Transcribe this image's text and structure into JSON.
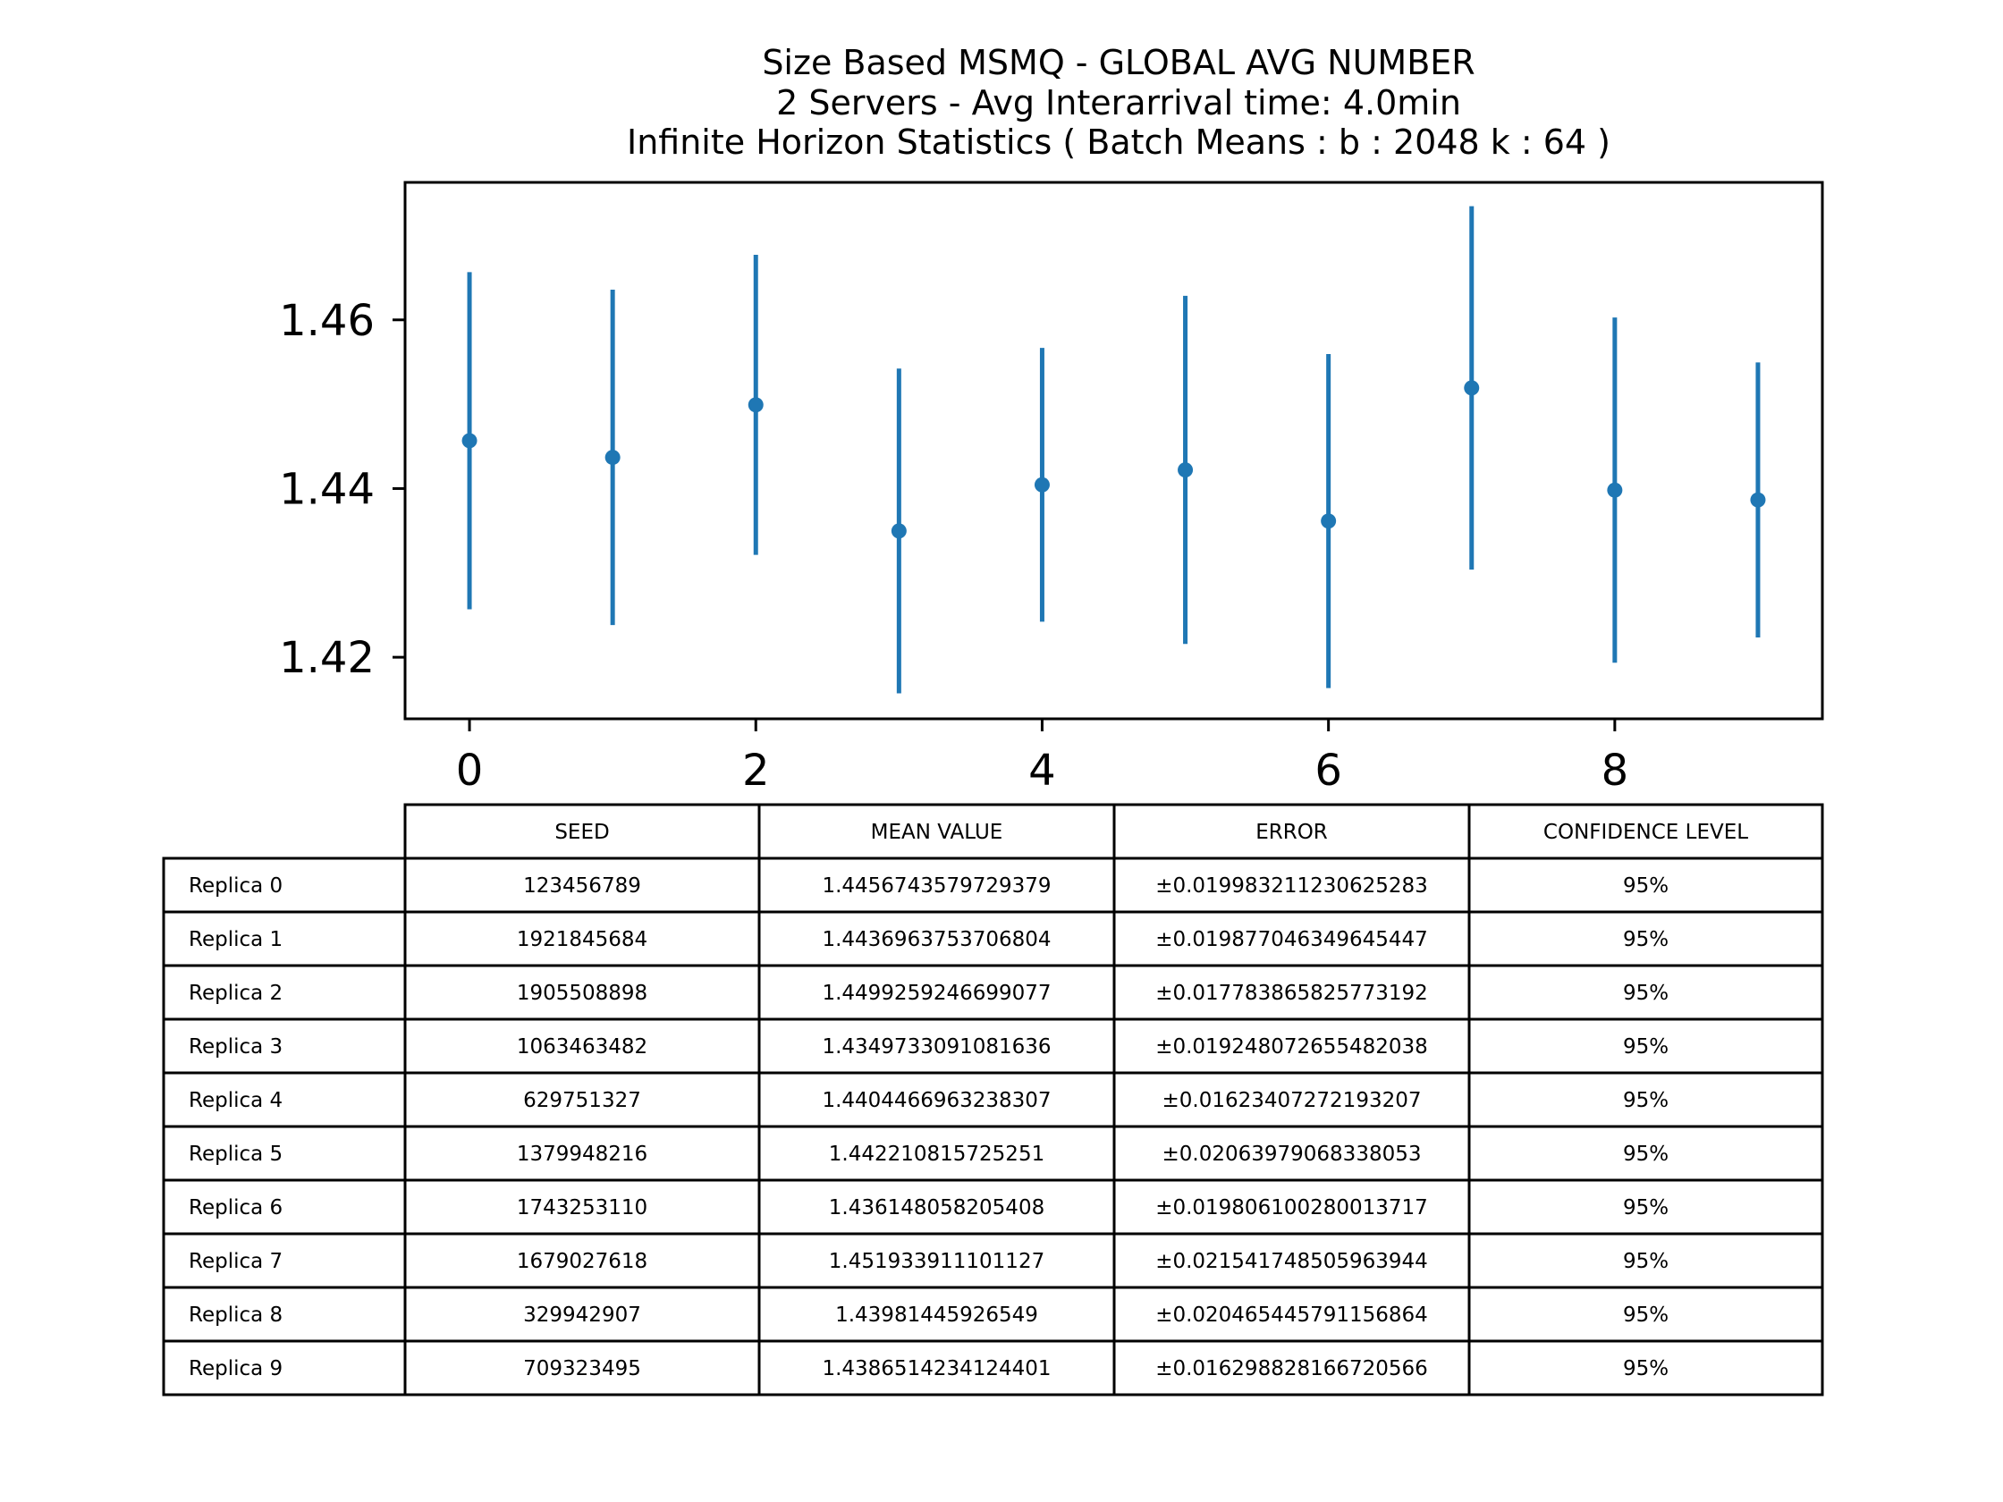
{
  "chart_data": {
    "type": "scatter",
    "title_lines": [
      "Size Based MSMQ - GLOBAL AVG NUMBER",
      "2 Servers -  Avg Interarrival time: 4.0min",
      "Infinite Horizon Statistics ( Batch Means : b : 2048  k : 64 )"
    ],
    "xlabel": "",
    "ylabel": "",
    "xlim": [
      -0.45,
      9.45
    ],
    "ylim": [
      1.4127,
      1.4763
    ],
    "xticks": [
      0,
      2,
      4,
      6,
      8
    ],
    "yticks": [
      1.42,
      1.44,
      1.46
    ],
    "grid": false,
    "color": "#1f77b4",
    "series": [
      {
        "x": [
          0,
          1,
          2,
          3,
          4,
          5,
          6,
          7,
          8,
          9
        ],
        "y": [
          1.4456743579729379,
          1.4436963753706804,
          1.4499259246699077,
          1.4349733091081636,
          1.4404466963238307,
          1.442210815725251,
          1.436148058205408,
          1.451933911101127,
          1.43981445926549,
          1.4386514234124401
        ],
        "error": [
          0.019983211230625283,
          0.019877046349645447,
          0.017783865825773192,
          0.019248072655482038,
          0.01623407272193207,
          0.02063979068338053,
          0.019806100280013717,
          0.021541748505963944,
          0.020465445791156864,
          0.016298828166720566
        ]
      }
    ]
  },
  "table": {
    "columns": [
      "SEED",
      "MEAN VALUE",
      "ERROR",
      "CONFIDENCE LEVEL"
    ],
    "rows": [
      {
        "label": "Replica 0",
        "cells": [
          "123456789",
          "1.4456743579729379",
          "±0.019983211230625283",
          "95%"
        ]
      },
      {
        "label": "Replica 1",
        "cells": [
          "1921845684",
          "1.4436963753706804",
          "±0.019877046349645447",
          "95%"
        ]
      },
      {
        "label": "Replica 2",
        "cells": [
          "1905508898",
          "1.4499259246699077",
          "±0.017783865825773192",
          "95%"
        ]
      },
      {
        "label": "Replica 3",
        "cells": [
          "1063463482",
          "1.4349733091081636",
          "±0.019248072655482038",
          "95%"
        ]
      },
      {
        "label": "Replica 4",
        "cells": [
          "629751327",
          "1.4404466963238307",
          "±0.01623407272193207",
          "95%"
        ]
      },
      {
        "label": "Replica 5",
        "cells": [
          "1379948216",
          "1.442210815725251",
          "±0.02063979068338053",
          "95%"
        ]
      },
      {
        "label": "Replica 6",
        "cells": [
          "1743253110",
          "1.436148058205408",
          "±0.019806100280013717",
          "95%"
        ]
      },
      {
        "label": "Replica 7",
        "cells": [
          "1679027618",
          "1.451933911101127",
          "±0.021541748505963944",
          "95%"
        ]
      },
      {
        "label": "Replica 8",
        "cells": [
          "329942907",
          "1.43981445926549",
          "±0.020465445791156864",
          "95%"
        ]
      },
      {
        "label": "Replica 9",
        "cells": [
          "709323495",
          "1.4386514234124401",
          "±0.016298828166720566",
          "95%"
        ]
      }
    ]
  }
}
